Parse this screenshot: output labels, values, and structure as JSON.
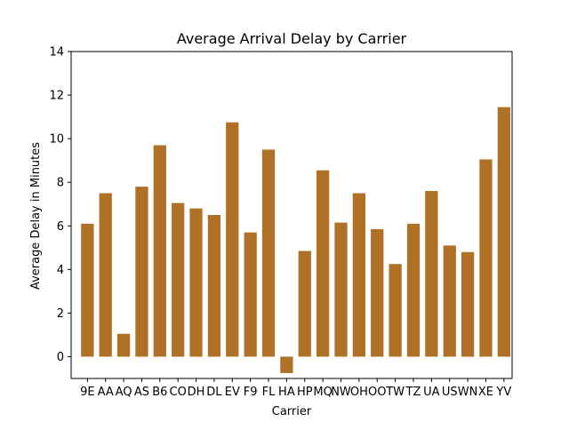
{
  "chart_data": {
    "type": "bar",
    "title": "Average Arrival Delay by Carrier",
    "xlabel": "Carrier",
    "ylabel": "Average Delay in Minutes",
    "categories": [
      "9E",
      "AA",
      "AQ",
      "AS",
      "B6",
      "CO",
      "DH",
      "DL",
      "EV",
      "F9",
      "FL",
      "HA",
      "HP",
      "MQ",
      "NW",
      "OH",
      "OO",
      "TW",
      "TZ",
      "UA",
      "US",
      "WN",
      "XE",
      "YV"
    ],
    "values": [
      6.1,
      7.5,
      1.05,
      7.8,
      9.7,
      7.05,
      6.8,
      6.5,
      10.75,
      5.7,
      9.5,
      -0.75,
      4.85,
      8.55,
      6.15,
      7.5,
      5.85,
      4.25,
      6.1,
      7.6,
      5.1,
      4.8,
      9.05,
      11.45
    ],
    "ylim": [
      -1,
      14
    ],
    "yticks": [
      0,
      2,
      4,
      6,
      8,
      10,
      12,
      14
    ],
    "bar_color": "#ae7125",
    "grid": false,
    "legend": "none"
  }
}
